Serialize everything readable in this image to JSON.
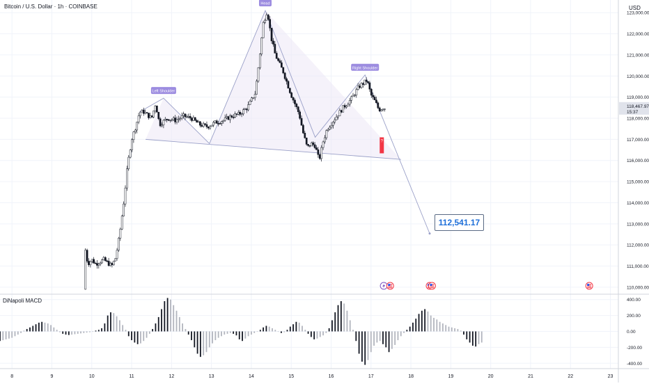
{
  "header": {
    "symbol_title": "Bitcoin / U.S. Dollar · 1h · COINBASE"
  },
  "price_axis": {
    "currency": "USD",
    "ticks": [
      "123,000.00",
      "122,000.00",
      "121,000.00",
      "120,000.00",
      "119,000.00",
      "118,000.00",
      "117,000.00",
      "116,000.00",
      "115,000.00",
      "114,000.00",
      "113,000.00",
      "112,000.00",
      "111,000.00",
      "110,000.00"
    ],
    "last_price": "118,467.97",
    "countdown": "15:37",
    "last_price_color": "#e0e3eb"
  },
  "time_axis": {
    "ticks": [
      "8",
      "9",
      "10",
      "11",
      "12",
      "13",
      "14",
      "15",
      "16",
      "17",
      "18",
      "19",
      "20",
      "21",
      "22",
      "23"
    ]
  },
  "pattern": {
    "labels": {
      "left_shoulder": "Left Shoulder",
      "head": "Head",
      "right_shoulder": "Right Shoulder"
    },
    "target_price": "112,541.17",
    "label_color": "#9c8ce0",
    "fill_color": "#ede7f6",
    "line_color": "#9aa0c8"
  },
  "markers": {
    "question_badge": "?",
    "question_color": "#f23645",
    "events": [
      {
        "name": "lightning",
        "icon": "lightning-icon",
        "x": 17.32
      },
      {
        "name": "us-flag",
        "icon": "us-flag-icon",
        "x": 17.48
      },
      {
        "name": "us-flag",
        "icon": "us-flag-icon",
        "x": 18.47
      },
      {
        "name": "us-flag",
        "icon": "us-flag-icon",
        "x": 18.53
      },
      {
        "name": "us-flag",
        "icon": "us-flag-icon",
        "x": 22.47
      }
    ]
  },
  "macd": {
    "title": "DiNapoli MACD",
    "ticks": [
      "400.00",
      "200.00",
      "0.00",
      "-200.00",
      "-400.00"
    ]
  },
  "chart_data": [
    {
      "type": "candlestick",
      "title": "Bitcoin / U.S. Dollar · 1h · COINBASE",
      "ylabel": "USD",
      "x_unit": "day of month",
      "ylim": [
        109700,
        123600
      ],
      "xlim": [
        7.7,
        23.2
      ],
      "x_tick_labels": [
        "8",
        "9",
        "10",
        "11",
        "12",
        "13",
        "14",
        "15",
        "16",
        "17",
        "18",
        "19",
        "20",
        "21",
        "22",
        "23"
      ],
      "y_tick_labels": [
        "123,000.00",
        "122,000.00",
        "121,000.00",
        "120,000.00",
        "119,000.00",
        "118,000.00",
        "117,000.00",
        "116,000.00",
        "115,000.00",
        "114,000.00",
        "113,000.00",
        "112,000.00",
        "111,000.00",
        "110,000.00"
      ],
      "price_path": [
        [
          9.8,
          109900
        ],
        [
          9.82,
          112000
        ],
        [
          9.9,
          111100
        ],
        [
          10.0,
          111300
        ],
        [
          10.1,
          111100
        ],
        [
          10.3,
          111300
        ],
        [
          10.5,
          111000
        ],
        [
          10.6,
          111400
        ],
        [
          10.7,
          112500
        ],
        [
          10.8,
          114000
        ],
        [
          10.9,
          115800
        ],
        [
          11.0,
          117000
        ],
        [
          11.1,
          117600
        ],
        [
          11.2,
          118300
        ],
        [
          11.3,
          118300
        ],
        [
          11.5,
          118000
        ],
        [
          11.6,
          118700
        ],
        [
          11.7,
          117700
        ],
        [
          11.9,
          118000
        ],
        [
          12.1,
          117900
        ],
        [
          12.3,
          118100
        ],
        [
          12.5,
          118000
        ],
        [
          12.7,
          117700
        ],
        [
          12.9,
          117600
        ],
        [
          13.1,
          117800
        ],
        [
          13.3,
          117900
        ],
        [
          13.5,
          118100
        ],
        [
          13.7,
          118200
        ],
        [
          13.9,
          118500
        ],
        [
          14.1,
          119200
        ],
        [
          14.2,
          120800
        ],
        [
          14.3,
          122500
        ],
        [
          14.4,
          123100
        ],
        [
          14.5,
          121800
        ],
        [
          14.6,
          121000
        ],
        [
          14.8,
          120200
        ],
        [
          15.0,
          119100
        ],
        [
          15.2,
          118200
        ],
        [
          15.3,
          117300
        ],
        [
          15.4,
          116600
        ],
        [
          15.5,
          116800
        ],
        [
          15.6,
          116700
        ],
        [
          15.7,
          116000
        ],
        [
          15.8,
          116900
        ],
        [
          15.9,
          117500
        ],
        [
          16.1,
          118000
        ],
        [
          16.3,
          118500
        ],
        [
          16.5,
          118900
        ],
        [
          16.7,
          119500
        ],
        [
          16.9,
          119800
        ],
        [
          17.0,
          119100
        ],
        [
          17.1,
          118800
        ],
        [
          17.2,
          118400
        ],
        [
          17.3,
          118500
        ],
        [
          17.36,
          118468
        ]
      ],
      "overlays": {
        "left_shoulder_peak": [
          11.8,
          118950
        ],
        "head_peak": [
          14.35,
          123100
        ],
        "right_shoulder_peak": [
          16.85,
          120050
        ],
        "neckline_start": [
          11.35,
          117000
        ],
        "neckline_mid": [
          12.95,
          116800
        ],
        "neckline_end": [
          17.75,
          116050
        ],
        "projection_end": [
          18.47,
          112541
        ]
      },
      "last_price": 118467.97
    },
    {
      "type": "bar",
      "title": "DiNapoli MACD",
      "ylim": [
        -450,
        450
      ],
      "y_tick_labels": [
        "400.00",
        "200.00",
        "0.00",
        "-200.00",
        "-400.00"
      ],
      "x_unit": "day of month",
      "x_start": 7.7,
      "x_step": 0.075,
      "values": [
        -120,
        -110,
        -100,
        -90,
        -80,
        -60,
        -40,
        -20,
        10,
        30,
        50,
        70,
        90,
        110,
        120,
        110,
        100,
        80,
        50,
        20,
        -10,
        -30,
        -40,
        -45,
        -40,
        -35,
        -30,
        -25,
        -20,
        -15,
        -10,
        0,
        10,
        20,
        40,
        100,
        200,
        240,
        230,
        190,
        140,
        80,
        20,
        -60,
        -110,
        -140,
        -160,
        -150,
        -120,
        -80,
        -30,
        30,
        100,
        180,
        280,
        380,
        420,
        400,
        330,
        260,
        180,
        100,
        30,
        -40,
        -110,
        -200,
        -280,
        -320,
        -300,
        -260,
        -200,
        -150,
        -110,
        -80,
        -60,
        -40,
        -30,
        -20,
        -30,
        -50,
        -100,
        -120,
        -90,
        -60,
        -40,
        -20,
        0,
        20,
        50,
        70,
        60,
        40,
        20,
        0,
        -20,
        -10,
        20,
        60,
        90,
        120,
        110,
        70,
        20,
        -30,
        -70,
        -100,
        -90,
        -70,
        -50,
        -20,
        40,
        140,
        240,
        330,
        380,
        350,
        260,
        140,
        20,
        -120,
        -280,
        -380,
        -420,
        -360,
        -260,
        -180,
        -140,
        -120,
        -160,
        -200,
        -260,
        -220,
        -170,
        -110,
        -60,
        -20,
        20,
        60,
        110,
        160,
        220,
        260,
        280,
        250,
        200,
        170,
        150,
        120,
        100,
        80,
        60,
        50,
        40,
        30,
        10,
        -40,
        -100,
        -140,
        -180,
        -190,
        -160,
        -140
      ]
    }
  ]
}
